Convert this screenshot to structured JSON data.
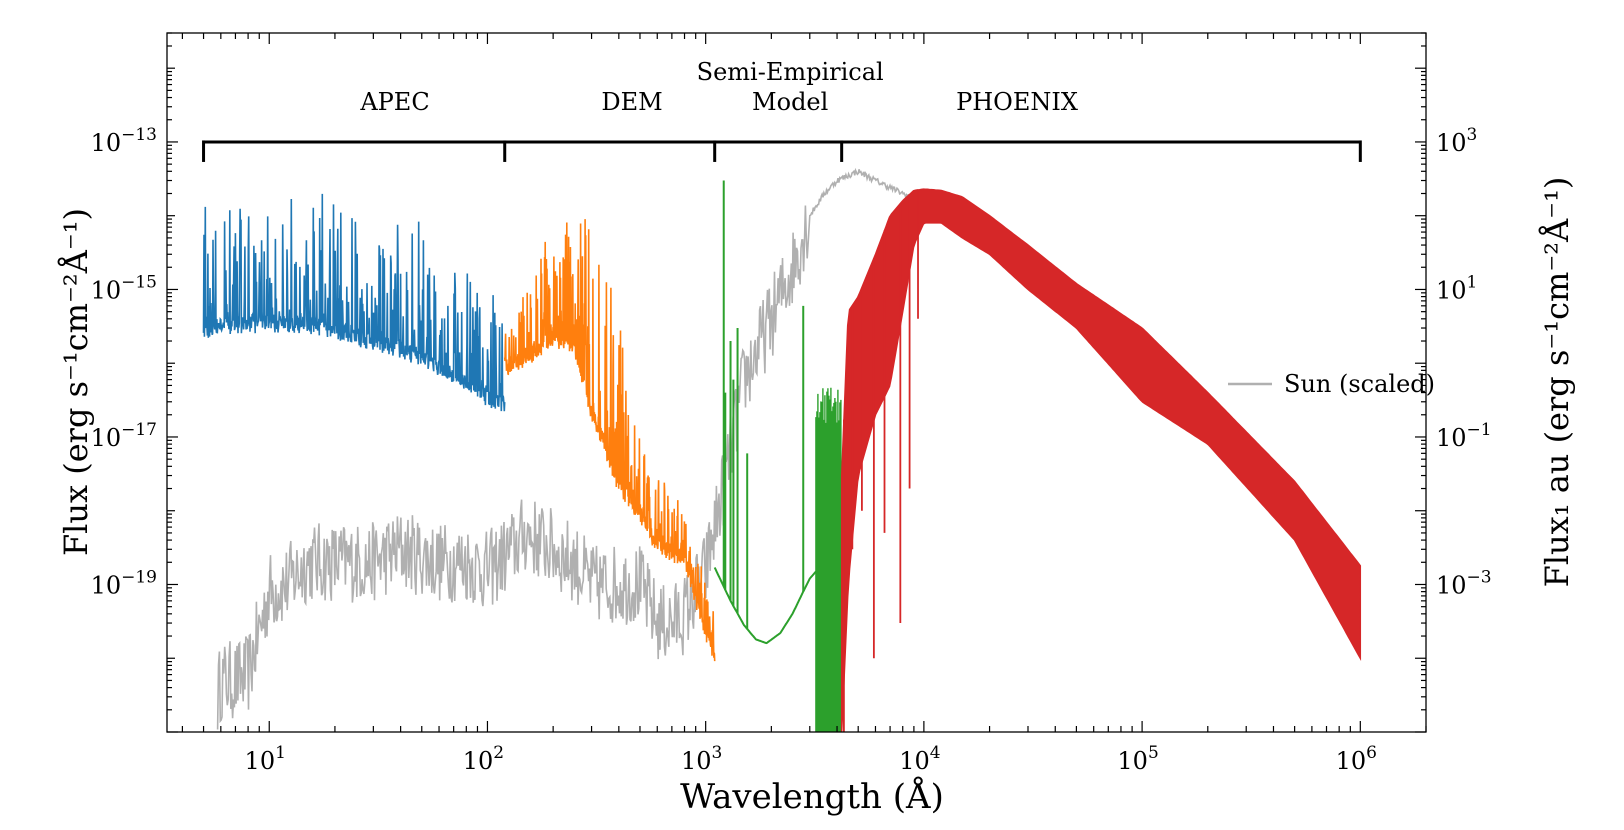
{
  "chart_data": {
    "type": "line",
    "xlabel": "Wavelength (Å)",
    "ylabel_left": "Flux (erg s⁻¹cm⁻²Å⁻¹)",
    "ylabel_right": "Flux₁ au (erg s⁻¹cm⁻²Å⁻¹)",
    "x_scale": "log",
    "y_scale": "log",
    "xlim": [
      3.4,
      2000000
    ],
    "ylim_left": [
      1e-21,
      3e-12
    ],
    "ylim_right": [
      1e-05,
      30000
    ],
    "x_ticks": [
      {
        "value": 10,
        "label": "10",
        "exp": "1"
      },
      {
        "value": 100,
        "label": "10",
        "exp": "2"
      },
      {
        "value": 1000,
        "label": "10",
        "exp": "3"
      },
      {
        "value": 10000,
        "label": "10",
        "exp": "4"
      },
      {
        "value": 100000,
        "label": "10",
        "exp": "5"
      },
      {
        "value": 1000000,
        "label": "10",
        "exp": "6"
      }
    ],
    "y_ticks_left": [
      {
        "value": 1e-13,
        "label": "10",
        "exp": "−13"
      },
      {
        "value": 1e-15,
        "label": "10",
        "exp": "−15"
      },
      {
        "value": 1e-17,
        "label": "10",
        "exp": "−17"
      },
      {
        "value": 1e-19,
        "label": "10",
        "exp": "−19"
      }
    ],
    "y_ticks_right": [
      {
        "value": 1000,
        "label": "10",
        "exp": "3"
      },
      {
        "value": 10,
        "label": "10",
        "exp": "1"
      },
      {
        "value": 0.1,
        "label": "10",
        "exp": "−1"
      },
      {
        "value": 0.001,
        "label": "10",
        "exp": "−3"
      }
    ],
    "regions": [
      {
        "name": "APEC",
        "start": 5,
        "end": 120
      },
      {
        "name": "DEM",
        "start": 120,
        "end": 1100
      },
      {
        "name": "Semi-Empirical Model",
        "line1": "Semi-Empirical",
        "line2": "Model",
        "start": 1100,
        "end": 4200
      },
      {
        "name": "PHOENIX",
        "start": 4200,
        "end": 1000000
      }
    ],
    "region_bracket_y": 1e-13,
    "legend": {
      "label": "Sun (scaled)",
      "position": "center-right"
    },
    "series": [
      {
        "name": "Sun (scaled)",
        "color": "#b0b0b0",
        "kind": "noisy",
        "x": [
          5.8,
          6,
          7,
          8,
          10,
          12,
          15,
          20,
          25,
          30,
          40,
          60,
          80,
          100,
          130,
          150,
          200,
          250,
          300,
          400,
          500,
          600,
          700,
          800,
          1000,
          1200,
          1500,
          2000,
          2500,
          3000,
          3500,
          4000,
          5000,
          6000,
          8000,
          10000,
          15000,
          20000,
          25000
        ],
        "y": [
          3e-21,
          5e-21,
          5e-21,
          6e-21,
          8e-20,
          1e-19,
          2e-19,
          2e-19,
          2e-19,
          2e-19,
          3e-19,
          2e-19,
          2e-19,
          1.5e-19,
          3e-19,
          5e-19,
          3e-19,
          2e-19,
          1e-19,
          1e-19,
          1e-19,
          3e-20,
          3e-20,
          4e-20,
          1.5e-19,
          2e-18,
          6e-17,
          4e-16,
          2e-15,
          1e-14,
          2e-14,
          3e-14,
          4e-14,
          3e-14,
          2e-14,
          1.5e-14,
          8e-15,
          4e-15,
          1.8e-15
        ]
      },
      {
        "name": "APEC",
        "color": "#1f77b4",
        "kind": "spiky",
        "x": [
          5,
          7,
          10,
          15,
          20,
          30,
          50,
          70,
          100,
          120
        ],
        "y": [
          2.5e-16,
          3e-16,
          3e-16,
          3e-16,
          2.5e-16,
          1.7e-16,
          1.1e-16,
          6e-17,
          3e-17,
          2.5e-17
        ],
        "peaks": [
          1.5e-14,
          1.3e-14,
          2e-14,
          1.5e-14,
          2.5e-14,
          1e-14,
          1e-14,
          3e-15,
          1.2e-15,
          5e-16
        ]
      },
      {
        "name": "DEM",
        "color": "#ff7f0e",
        "kind": "spiky",
        "x": [
          120,
          150,
          200,
          250,
          300,
          400,
          500,
          600,
          800,
          1000,
          1100
        ],
        "y": [
          8e-17,
          1e-16,
          2e-16,
          1.5e-16,
          2e-17,
          2e-18,
          8e-19,
          3e-19,
          2e-19,
          2e-20,
          1e-20
        ],
        "peaks": [
          3e-16,
          1e-15,
          1.2e-14,
          8e-15,
          1.5e-14,
          5e-16,
          1e-17,
          3e-18,
          1.5e-18,
          1e-19,
          4e-20
        ]
      },
      {
        "name": "Semi-Empirical Model",
        "color": "#2ca02c",
        "kind": "line",
        "x": [
          1100,
          1300,
          1500,
          1700,
          1900,
          2200,
          2500,
          2800,
          3000,
          3200
        ],
        "y": [
          1.7e-19,
          6e-20,
          2.8e-20,
          1.8e-20,
          1.6e-20,
          2.2e-20,
          4e-20,
          8e-20,
          1.2e-19,
          1.5e-19
        ],
        "lines": [
          {
            "x": 1210,
            "y": 3e-14
          },
          {
            "x": 1230,
            "y": 4e-17
          },
          {
            "x": 1300,
            "y": 2e-16
          },
          {
            "x": 1340,
            "y": 6e-17
          },
          {
            "x": 1400,
            "y": 3e-16
          },
          {
            "x": 1550,
            "y": 6e-18
          },
          {
            "x": 2800,
            "y": 6e-16
          }
        ],
        "band": {
          "x": [
            3200,
            4200
          ],
          "y": [
            1e-21,
            5e-17
          ]
        }
      },
      {
        "name": "PHOENIX",
        "color": "#d62728",
        "kind": "band",
        "x": [
          4200,
          4500,
          5000,
          6000,
          7000,
          8000,
          9000,
          10000,
          12000,
          15000,
          20000,
          30000,
          50000,
          100000,
          200000,
          500000,
          1000000
        ],
        "y_upper": [
          3e-18,
          5e-16,
          8e-16,
          3e-15,
          1e-14,
          1.6e-14,
          2.2e-14,
          2.3e-14,
          2.2e-14,
          1.8e-14,
          1e-14,
          4e-15,
          1.2e-15,
          3e-16,
          4e-17,
          2.5e-18,
          1.8e-19
        ],
        "y_lower": [
          1e-21,
          1e-19,
          3e-18,
          2e-17,
          5e-17,
          5e-16,
          4e-15,
          8e-15,
          8e-15,
          5e-15,
          3e-15,
          1e-15,
          3e-16,
          3e-17,
          8e-18,
          4e-19,
          1e-20
        ]
      }
    ]
  }
}
